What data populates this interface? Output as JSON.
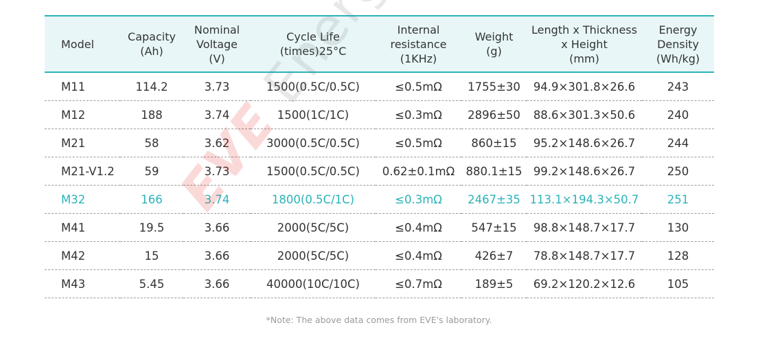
{
  "table": {
    "headers": [
      {
        "lines": [
          "Model"
        ]
      },
      {
        "lines": [
          "Capacity",
          "(Ah)"
        ]
      },
      {
        "lines": [
          "Nominal",
          "Voltage",
          "(V)"
        ]
      },
      {
        "lines": [
          "Cycle Life",
          "(times)25°C"
        ]
      },
      {
        "lines": [
          "Internal",
          "resistance",
          "(1KHz)"
        ]
      },
      {
        "lines": [
          "Weight",
          "(g)"
        ]
      },
      {
        "lines": [
          "Length x Thickness",
          "x Height",
          "(mm)"
        ]
      },
      {
        "lines": [
          "Energy",
          "Density",
          "(Wh/kg)"
        ]
      }
    ],
    "rows": [
      {
        "highlight": false,
        "cells": [
          "M11",
          "114.2",
          "3.73",
          "1500(0.5C/0.5C)",
          "≤0.5mΩ",
          "1755±30",
          "94.9×301.8×26.6",
          "243"
        ]
      },
      {
        "highlight": false,
        "cells": [
          "M12",
          "188",
          "3.74",
          "1500(1C/1C)",
          "≤0.3mΩ",
          "2896±50",
          "88.6×301.3×50.6",
          "240"
        ]
      },
      {
        "highlight": false,
        "cells": [
          "M21",
          "58",
          "3.62",
          "3000(0.5C/0.5C)",
          "≤0.5mΩ",
          "860±15",
          "95.2×148.6×26.7",
          "244"
        ]
      },
      {
        "highlight": false,
        "cells": [
          "M21-V1.2",
          "59",
          "3.73",
          "1500(0.5C/0.5C)",
          "0.62±0.1mΩ",
          "880.1±15",
          "99.2×148.6×26.7",
          "250"
        ]
      },
      {
        "highlight": true,
        "cells": [
          "M32",
          "166",
          "3.74",
          "1800(0.5C/1C)",
          "≤0.3mΩ",
          "2467±35",
          "113.1×194.3×50.7",
          "251"
        ]
      },
      {
        "highlight": false,
        "cells": [
          "M41",
          "19.5",
          "3.66",
          "2000(5C/5C)",
          "≤0.4mΩ",
          "547±15",
          "98.8×148.7×17.7",
          "130"
        ]
      },
      {
        "highlight": false,
        "cells": [
          "M42",
          "15",
          "3.66",
          "2000(5C/5C)",
          "≤0.4mΩ",
          "426±7",
          "78.8×148.7×17.7",
          "128"
        ]
      },
      {
        "highlight": false,
        "cells": [
          "M43",
          "5.45",
          "3.66",
          "40000(10C/10C)",
          "≤0.7mΩ",
          "189±5",
          "69.2×120.2×12.6",
          "105"
        ]
      }
    ]
  },
  "note": "*Note: The above data comes from EVE's laboratory.",
  "watermark": {
    "brand": "EVE",
    "word": "Energy"
  },
  "colors": {
    "accent": "#2ab3b9",
    "header_bg": "#e8f6f8",
    "watermark_red": "#e2231a"
  }
}
